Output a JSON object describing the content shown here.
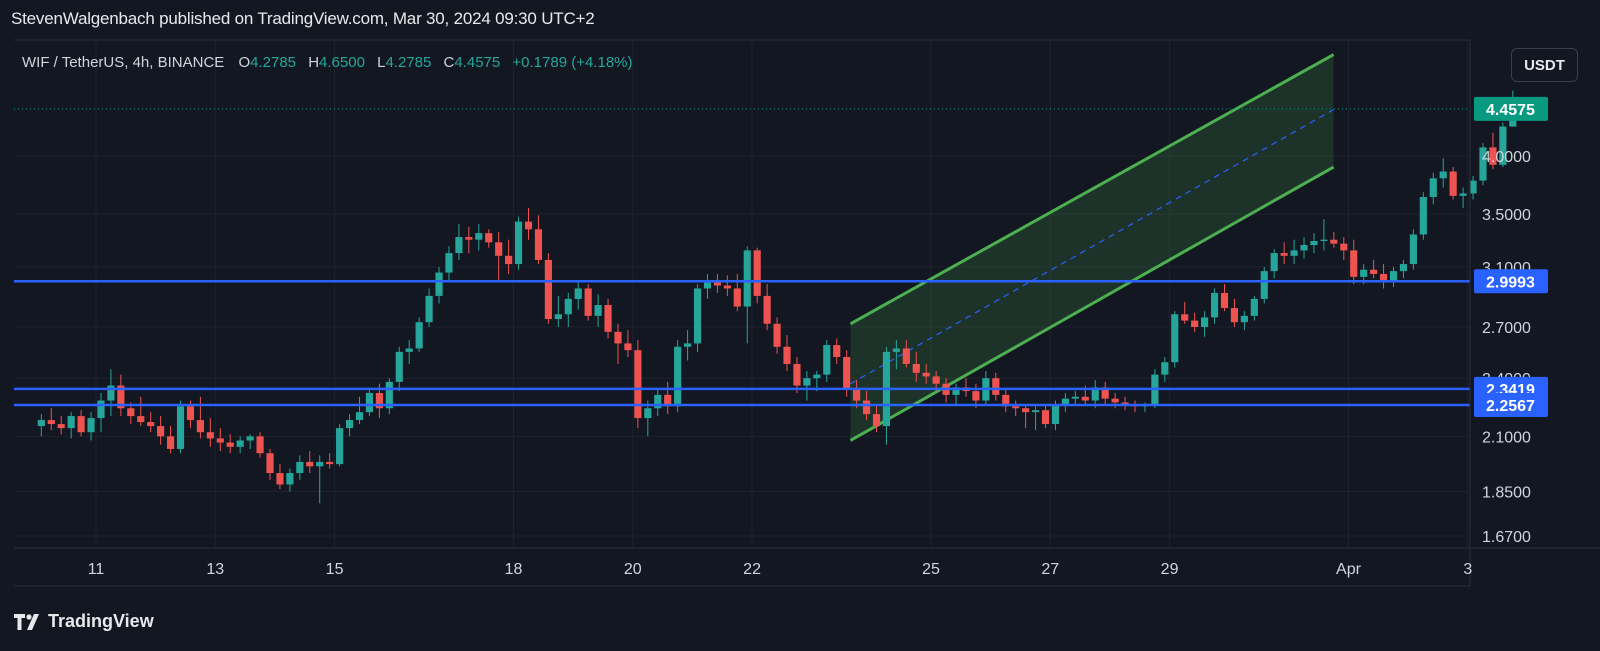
{
  "header": {
    "published": "StevenWalgenbach published on TradingView.com, Mar 30, 2024 09:30 UTC+2"
  },
  "legend": {
    "symbol": "WIF / TetherUS, 4h, BINANCE",
    "o_label": "O",
    "o_value": "4.2785",
    "h_label": "H",
    "h_value": "4.6500",
    "l_label": "L",
    "l_value": "4.2785",
    "c_label": "C",
    "c_value": "4.4575",
    "change": "+0.1789 (+4.18%)"
  },
  "currency_button": "USDT",
  "footer": {
    "brand": "TradingView"
  },
  "colors": {
    "background": "#131722",
    "up": "#26a69a",
    "down": "#ef5350",
    "level_line": "#2962ff",
    "channel": "#4caf50",
    "last_price_badge": "#089981"
  },
  "chart_data": {
    "type": "candlestick",
    "title": "WIF / TetherUS, 4h, BINANCE",
    "y_scale": "log",
    "ylim": [
      1.62,
      5.05
    ],
    "x_tick_labels": [
      {
        "label": "11",
        "day": 11
      },
      {
        "label": "13",
        "day": 13
      },
      {
        "label": "15",
        "day": 15
      },
      {
        "label": "18",
        "day": 18
      },
      {
        "label": "20",
        "day": 20
      },
      {
        "label": "22",
        "day": 22
      },
      {
        "label": "25",
        "day": 25
      },
      {
        "label": "27",
        "day": 27
      },
      {
        "label": "29",
        "day": 29
      },
      {
        "label": "Apr",
        "day": 32
      },
      {
        "label": "3",
        "day": 34
      }
    ],
    "y_tick_labels": [
      "4.0000",
      "3.5000",
      "3.1000",
      "2.7000",
      "2.4000",
      "2.1000",
      "1.8500",
      "1.6700"
    ],
    "y_tick_values": [
      4.0,
      3.5,
      3.1,
      2.7,
      2.4,
      2.1,
      1.85,
      1.67
    ],
    "horizontal_levels": [
      {
        "value": 2.9993,
        "label": "2.9993"
      },
      {
        "value": 2.3419,
        "label": "2.3419"
      },
      {
        "value": 2.2567,
        "label": "2.2567"
      }
    ],
    "last_price": {
      "value": 4.4575,
      "label": "4.4575"
    },
    "channel": {
      "start_day": 23.65,
      "end_day": 31.75,
      "upper": [
        2.72,
        5.05
      ],
      "middle": [
        2.37,
        4.45
      ],
      "lower": [
        2.08,
        3.9
      ]
    },
    "start_day": 10.0,
    "bar_step_days": 0.1667,
    "candles": [
      [
        2.15,
        2.21,
        2.1,
        2.18
      ],
      [
        2.18,
        2.24,
        2.13,
        2.16
      ],
      [
        2.16,
        2.2,
        2.11,
        2.14
      ],
      [
        2.14,
        2.22,
        2.09,
        2.2
      ],
      [
        2.2,
        2.23,
        2.1,
        2.12
      ],
      [
        2.12,
        2.22,
        2.08,
        2.19
      ],
      [
        2.19,
        2.32,
        2.12,
        2.28
      ],
      [
        2.28,
        2.45,
        2.2,
        2.36
      ],
      [
        2.36,
        2.42,
        2.2,
        2.24
      ],
      [
        2.24,
        2.27,
        2.16,
        2.2
      ],
      [
        2.2,
        2.3,
        2.15,
        2.17
      ],
      [
        2.17,
        2.22,
        2.12,
        2.15
      ],
      [
        2.15,
        2.2,
        2.06,
        2.1
      ],
      [
        2.1,
        2.15,
        2.02,
        2.04
      ],
      [
        2.04,
        2.28,
        2.02,
        2.25
      ],
      [
        2.25,
        2.28,
        2.14,
        2.18
      ],
      [
        2.18,
        2.3,
        2.09,
        2.12
      ],
      [
        2.12,
        2.19,
        2.05,
        2.09
      ],
      [
        2.09,
        2.14,
        2.03,
        2.07
      ],
      [
        2.07,
        2.11,
        2.02,
        2.05
      ],
      [
        2.05,
        2.1,
        2.02,
        2.08
      ],
      [
        2.08,
        2.11,
        2.04,
        2.1
      ],
      [
        2.1,
        2.12,
        2.0,
        2.02
      ],
      [
        2.02,
        2.04,
        1.9,
        1.93
      ],
      [
        1.93,
        1.97,
        1.86,
        1.88
      ],
      [
        1.88,
        1.95,
        1.85,
        1.93
      ],
      [
        1.93,
        2.01,
        1.9,
        1.98
      ],
      [
        1.98,
        2.03,
        1.93,
        1.96
      ],
      [
        1.96,
        2.01,
        1.8,
        1.98
      ],
      [
        1.98,
        2.02,
        1.95,
        1.97
      ],
      [
        1.97,
        2.16,
        1.96,
        2.14
      ],
      [
        2.14,
        2.21,
        2.1,
        2.18
      ],
      [
        2.18,
        2.3,
        2.16,
        2.22
      ],
      [
        2.22,
        2.35,
        2.2,
        2.32
      ],
      [
        2.32,
        2.37,
        2.19,
        2.24
      ],
      [
        2.24,
        2.4,
        2.21,
        2.38
      ],
      [
        2.38,
        2.58,
        2.33,
        2.55
      ],
      [
        2.55,
        2.62,
        2.48,
        2.57
      ],
      [
        2.57,
        2.76,
        2.55,
        2.73
      ],
      [
        2.73,
        2.95,
        2.7,
        2.9
      ],
      [
        2.9,
        3.1,
        2.85,
        3.06
      ],
      [
        3.06,
        3.25,
        3.0,
        3.2
      ],
      [
        3.2,
        3.42,
        3.15,
        3.32
      ],
      [
        3.32,
        3.4,
        3.2,
        3.3
      ],
      [
        3.3,
        3.42,
        3.22,
        3.35
      ],
      [
        3.35,
        3.38,
        3.24,
        3.28
      ],
      [
        3.28,
        3.36,
        3.0,
        3.18
      ],
      [
        3.18,
        3.3,
        3.05,
        3.12
      ],
      [
        3.12,
        3.48,
        3.08,
        3.44
      ],
      [
        3.44,
        3.55,
        3.3,
        3.38
      ],
      [
        3.38,
        3.49,
        3.12,
        3.15
      ],
      [
        3.15,
        3.2,
        2.72,
        2.75
      ],
      [
        2.75,
        2.9,
        2.7,
        2.78
      ],
      [
        2.78,
        2.92,
        2.7,
        2.88
      ],
      [
        2.88,
        3.0,
        2.81,
        2.95
      ],
      [
        2.95,
        2.98,
        2.74,
        2.77
      ],
      [
        2.77,
        2.91,
        2.7,
        2.84
      ],
      [
        2.84,
        2.88,
        2.63,
        2.67
      ],
      [
        2.67,
        2.72,
        2.48,
        2.6
      ],
      [
        2.6,
        2.68,
        2.52,
        2.56
      ],
      [
        2.56,
        2.62,
        2.14,
        2.19
      ],
      [
        2.19,
        2.28,
        2.1,
        2.24
      ],
      [
        2.24,
        2.34,
        2.2,
        2.31
      ],
      [
        2.31,
        2.38,
        2.21,
        2.25
      ],
      [
        2.25,
        2.62,
        2.22,
        2.58
      ],
      [
        2.58,
        2.68,
        2.5,
        2.6
      ],
      [
        2.6,
        2.98,
        2.55,
        2.95
      ],
      [
        2.95,
        3.05,
        2.88,
        2.99
      ],
      [
        2.99,
        3.05,
        2.92,
        2.97
      ],
      [
        2.97,
        3.04,
        2.9,
        2.95
      ],
      [
        2.95,
        3.05,
        2.8,
        2.83
      ],
      [
        2.83,
        3.25,
        2.6,
        3.22
      ],
      [
        3.22,
        3.24,
        2.85,
        2.9
      ],
      [
        2.9,
        2.98,
        2.68,
        2.72
      ],
      [
        2.72,
        2.76,
        2.54,
        2.58
      ],
      [
        2.58,
        2.65,
        2.44,
        2.48
      ],
      [
        2.48,
        2.52,
        2.32,
        2.36
      ],
      [
        2.36,
        2.44,
        2.28,
        2.4
      ],
      [
        2.4,
        2.44,
        2.33,
        2.42
      ],
      [
        2.42,
        2.62,
        2.38,
        2.59
      ],
      [
        2.59,
        2.63,
        2.48,
        2.52
      ],
      [
        2.52,
        2.56,
        2.3,
        2.34
      ],
      [
        2.34,
        2.39,
        2.24,
        2.28
      ],
      [
        2.28,
        2.33,
        2.18,
        2.21
      ],
      [
        2.21,
        2.25,
        2.12,
        2.15
      ],
      [
        2.15,
        2.58,
        2.06,
        2.55
      ],
      [
        2.55,
        2.62,
        2.45,
        2.57
      ],
      [
        2.57,
        2.62,
        2.46,
        2.48
      ],
      [
        2.48,
        2.55,
        2.38,
        2.43
      ],
      [
        2.43,
        2.48,
        2.37,
        2.41
      ],
      [
        2.41,
        2.44,
        2.33,
        2.37
      ],
      [
        2.37,
        2.4,
        2.27,
        2.31
      ],
      [
        2.31,
        2.37,
        2.26,
        2.35
      ],
      [
        2.35,
        2.4,
        2.3,
        2.33
      ],
      [
        2.33,
        2.37,
        2.24,
        2.28
      ],
      [
        2.28,
        2.44,
        2.26,
        2.4
      ],
      [
        2.4,
        2.43,
        2.28,
        2.31
      ],
      [
        2.31,
        2.34,
        2.22,
        2.25
      ],
      [
        2.25,
        2.28,
        2.2,
        2.24
      ],
      [
        2.24,
        2.26,
        2.14,
        2.22
      ],
      [
        2.22,
        2.25,
        2.13,
        2.23
      ],
      [
        2.23,
        2.26,
        2.14,
        2.16
      ],
      [
        2.16,
        2.28,
        2.13,
        2.26
      ],
      [
        2.26,
        2.32,
        2.22,
        2.29
      ],
      [
        2.29,
        2.33,
        2.25,
        2.3
      ],
      [
        2.3,
        2.36,
        2.26,
        2.28
      ],
      [
        2.28,
        2.39,
        2.24,
        2.35
      ],
      [
        2.35,
        2.38,
        2.26,
        2.29
      ],
      [
        2.29,
        2.32,
        2.24,
        2.27
      ],
      [
        2.27,
        2.3,
        2.23,
        2.26
      ],
      [
        2.26,
        2.28,
        2.22,
        2.25
      ],
      [
        2.25,
        2.27,
        2.22,
        2.26
      ],
      [
        2.26,
        2.45,
        2.24,
        2.42
      ],
      [
        2.42,
        2.52,
        2.38,
        2.49
      ],
      [
        2.49,
        2.8,
        2.46,
        2.78
      ],
      [
        2.78,
        2.86,
        2.72,
        2.74
      ],
      [
        2.74,
        2.79,
        2.67,
        2.7
      ],
      [
        2.7,
        2.8,
        2.64,
        2.76
      ],
      [
        2.76,
        2.95,
        2.72,
        2.92
      ],
      [
        2.92,
        2.98,
        2.8,
        2.82
      ],
      [
        2.82,
        2.88,
        2.7,
        2.73
      ],
      [
        2.73,
        2.8,
        2.68,
        2.77
      ],
      [
        2.77,
        2.9,
        2.74,
        2.88
      ],
      [
        2.88,
        3.1,
        2.85,
        3.07
      ],
      [
        3.07,
        3.23,
        3.02,
        3.2
      ],
      [
        3.2,
        3.28,
        3.12,
        3.18
      ],
      [
        3.18,
        3.3,
        3.12,
        3.22
      ],
      [
        3.22,
        3.32,
        3.16,
        3.26
      ],
      [
        3.26,
        3.35,
        3.2,
        3.29
      ],
      [
        3.29,
        3.46,
        3.22,
        3.3
      ],
      [
        3.3,
        3.36,
        3.24,
        3.27
      ],
      [
        3.27,
        3.32,
        3.15,
        3.22
      ],
      [
        3.22,
        3.3,
        2.98,
        3.03
      ],
      [
        3.03,
        3.12,
        2.98,
        3.08
      ],
      [
        3.08,
        3.15,
        3.02,
        3.05
      ],
      [
        3.05,
        3.12,
        2.95,
        3.0
      ],
      [
        3.0,
        3.1,
        2.96,
        3.07
      ],
      [
        3.07,
        3.15,
        3.02,
        3.12
      ],
      [
        3.12,
        3.38,
        3.08,
        3.34
      ],
      [
        3.34,
        3.68,
        3.3,
        3.64
      ],
      [
        3.64,
        3.85,
        3.58,
        3.8
      ],
      [
        3.8,
        3.98,
        3.72,
        3.86
      ],
      [
        3.86,
        3.9,
        3.62,
        3.65
      ],
      [
        3.65,
        3.72,
        3.55,
        3.67
      ],
      [
        3.67,
        3.82,
        3.62,
        3.78
      ],
      [
        3.78,
        4.12,
        3.74,
        4.08
      ],
      [
        4.08,
        4.22,
        3.88,
        3.92
      ],
      [
        3.92,
        4.32,
        3.9,
        4.28
      ],
      [
        4.28,
        4.65,
        4.28,
        4.4575
      ]
    ]
  }
}
